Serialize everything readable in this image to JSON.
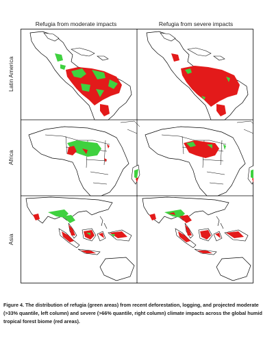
{
  "columns": [
    {
      "title": "Refugia from moderate impacts"
    },
    {
      "title": "Refugia from severe impacts"
    }
  ],
  "rows": [
    {
      "label": "Latin America"
    },
    {
      "label": "Africa"
    },
    {
      "label": "Asia"
    }
  ],
  "legend_colors": {
    "refugia": "#3fd13f",
    "impacted_forest": "#e31a1a",
    "land_outline": "#000000",
    "background": "#ffffff"
  },
  "caption": {
    "lead": "Figure 4.",
    "text": "The distribution of refugia (green areas) from recent deforestation, logging, and projected moderate (>33% quantile, left column) and severe (>66% quantile, right column) climate impacts across the global humid tropical forest biome (red areas)."
  }
}
